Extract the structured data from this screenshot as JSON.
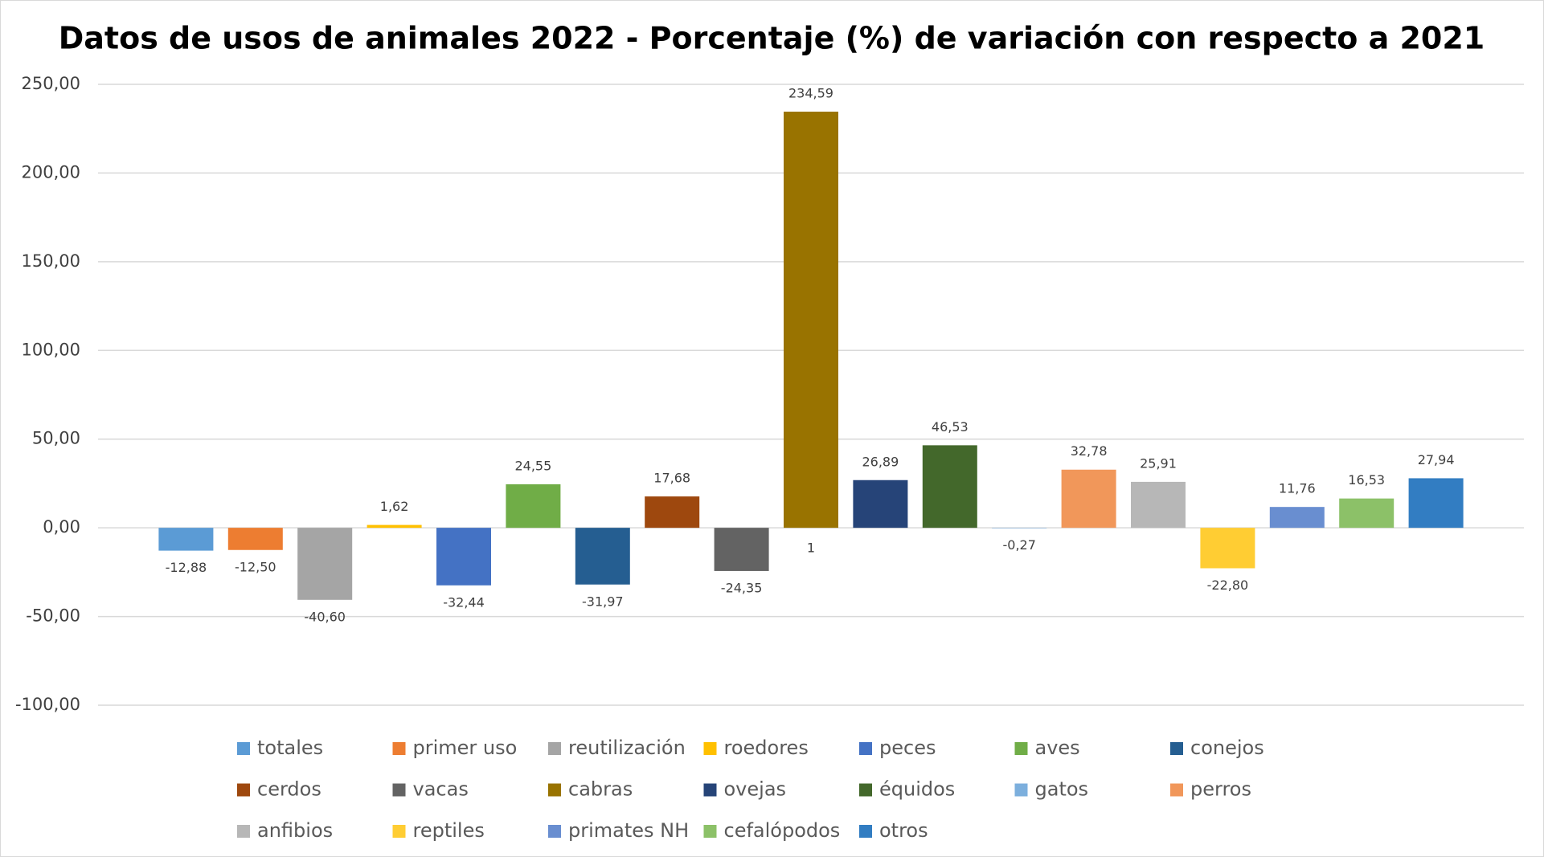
{
  "chart_data": {
    "type": "bar",
    "title": "Datos de usos de animales 2022 - Porcentaje (%) de variación con respecto a 2021",
    "ylim": [
      -100,
      250
    ],
    "yticks": [
      {
        "value": -100,
        "label": "-100,00"
      },
      {
        "value": -50,
        "label": "-50,00"
      },
      {
        "value": 0,
        "label": "0,00"
      },
      {
        "value": 50,
        "label": "50,00"
      },
      {
        "value": 100,
        "label": "100,00"
      },
      {
        "value": 150,
        "label": "150,00"
      },
      {
        "value": 200,
        "label": "200,00"
      },
      {
        "value": 250,
        "label": "250,00"
      }
    ],
    "grid": true,
    "legend": "bottom",
    "annotations": [
      {
        "text": "1"
      }
    ],
    "series": [
      {
        "name": "totales",
        "color": "#5b9bd5",
        "values": [
          -12.88
        ],
        "value_labels": [
          "-12,88"
        ]
      },
      {
        "name": "primer uso",
        "color": "#ed7d31",
        "values": [
          -12.5
        ],
        "value_labels": [
          "-12,50"
        ]
      },
      {
        "name": "reutilización",
        "color": "#a5a5a5",
        "values": [
          -40.6
        ],
        "value_labels": [
          "-40,60"
        ]
      },
      {
        "name": "roedores",
        "color": "#ffc000",
        "values": [
          1.62
        ],
        "value_labels": [
          "1,62"
        ]
      },
      {
        "name": "peces",
        "color": "#4472c4",
        "values": [
          -32.44
        ],
        "value_labels": [
          "-32,44"
        ]
      },
      {
        "name": "aves",
        "color": "#70ad47",
        "values": [
          24.55
        ],
        "value_labels": [
          "24,55"
        ]
      },
      {
        "name": "conejos",
        "color": "#255e91",
        "values": [
          -31.97
        ],
        "value_labels": [
          "-31,97"
        ]
      },
      {
        "name": "cerdos",
        "color": "#9e480e",
        "values": [
          17.68
        ],
        "value_labels": [
          "17,68"
        ]
      },
      {
        "name": "vacas",
        "color": "#636363",
        "values": [
          -24.35
        ],
        "value_labels": [
          "-24,35"
        ]
      },
      {
        "name": "cabras",
        "color": "#997300",
        "values": [
          234.59
        ],
        "value_labels": [
          "234,59"
        ]
      },
      {
        "name": "ovejas",
        "color": "#264478",
        "values": [
          26.89
        ],
        "value_labels": [
          "26,89"
        ]
      },
      {
        "name": "équidos",
        "color": "#43682b",
        "values": [
          46.53
        ],
        "value_labels": [
          "46,53"
        ]
      },
      {
        "name": "gatos",
        "color": "#7cafdd",
        "values": [
          -0.27
        ],
        "value_labels": [
          "-0,27"
        ]
      },
      {
        "name": "perros",
        "color": "#f1975a",
        "values": [
          32.78
        ],
        "value_labels": [
          "32,78"
        ]
      },
      {
        "name": "anfibios",
        "color": "#b7b7b7",
        "values": [
          25.91
        ],
        "value_labels": [
          "25,91"
        ]
      },
      {
        "name": "reptiles",
        "color": "#ffcd33",
        "values": [
          -22.8
        ],
        "value_labels": [
          "-22,80"
        ]
      },
      {
        "name": "primates NH",
        "color": "#698ed0",
        "values": [
          11.76
        ],
        "value_labels": [
          "11,76"
        ]
      },
      {
        "name": "cefalópodos",
        "color": "#8cc168",
        "values": [
          16.53
        ],
        "value_labels": [
          "16,53"
        ]
      },
      {
        "name": "otros",
        "color": "#327dc2",
        "values": [
          27.94
        ],
        "value_labels": [
          "27,94"
        ]
      }
    ]
  }
}
